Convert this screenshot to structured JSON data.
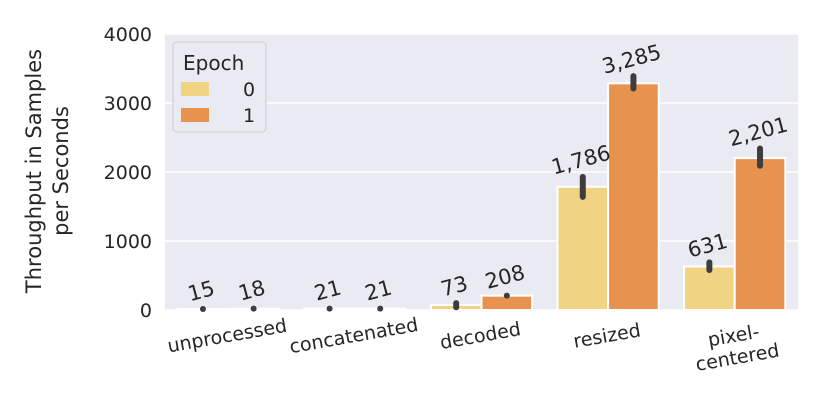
{
  "chart_data": {
    "type": "bar",
    "title": "",
    "xlabel": "",
    "ylabel_lines": [
      "Throughput in Samples",
      "per Seconds"
    ],
    "categories": [
      [
        "unprocessed"
      ],
      [
        "concatenated"
      ],
      [
        "decoded"
      ],
      [
        "resized"
      ],
      [
        "pixel-",
        "centered"
      ]
    ],
    "ylim": [
      0,
      4000
    ],
    "yticks": [
      0,
      1000,
      2000,
      3000,
      4000
    ],
    "grid": true,
    "legend": {
      "title": "Epoch",
      "placement": "top-left"
    },
    "series": [
      {
        "name": "0",
        "color": "#f0d484",
        "values": [
          15,
          21,
          73,
          1786,
          631
        ],
        "labels": [
          "15",
          "21",
          "73",
          "1,786",
          "631"
        ],
        "err_low": [
          0,
          0,
          40,
          1640,
          580
        ],
        "err_high": [
          30,
          40,
          100,
          1930,
          690
        ]
      },
      {
        "name": "1",
        "color": "#e8924f",
        "values": [
          18,
          21,
          208,
          3285,
          2201
        ],
        "labels": [
          "18",
          "21",
          "208",
          "3,285",
          "2,201"
        ],
        "err_low": [
          0,
          0,
          180,
          3210,
          2090
        ],
        "err_high": [
          40,
          40,
          235,
          3390,
          2340
        ]
      }
    ]
  }
}
